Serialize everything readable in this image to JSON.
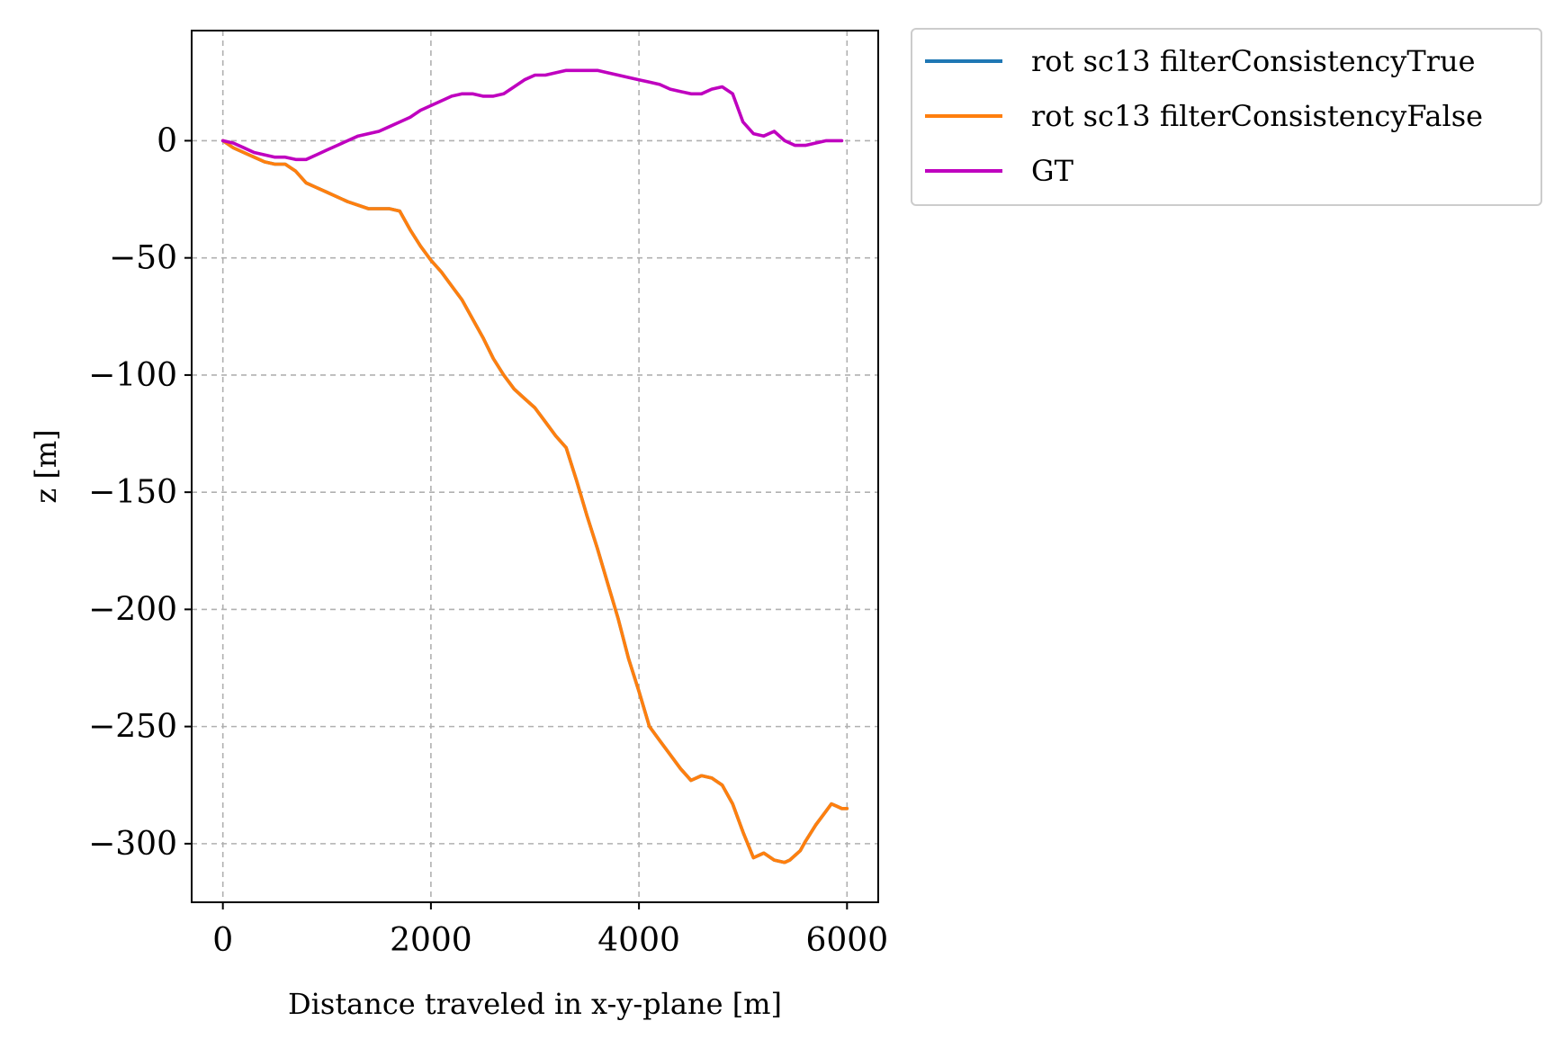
{
  "chart_data": {
    "type": "line",
    "title": "",
    "xlabel": "Distance traveled in x-y-plane [m]",
    "ylabel": "z [m]",
    "xlim": [
      -300,
      6300
    ],
    "ylim": [
      -325,
      47
    ],
    "xticks": [
      0,
      2000,
      4000,
      6000
    ],
    "xtick_labels": [
      "0",
      "2000",
      "4000",
      "6000"
    ],
    "yticks": [
      0,
      -50,
      -100,
      -150,
      -200,
      -250,
      -300
    ],
    "ytick_labels": [
      "0",
      "−50",
      "−100",
      "−150",
      "−200",
      "−250",
      "−300"
    ],
    "grid": true,
    "legend_position": "outside-upper-right",
    "series": [
      {
        "name": "rot sc13 filterConsistencyTrue",
        "color": "#1f77b4",
        "x": [
          0,
          100,
          200,
          300,
          400,
          500,
          600,
          700,
          800,
          900,
          1000,
          1200,
          1400,
          1500,
          1600,
          1700,
          1800,
          1900,
          2000,
          2100,
          2200,
          2300,
          2400,
          2500,
          2600,
          2700,
          2800,
          2900,
          3000,
          3100,
          3200,
          3300,
          3400,
          3500,
          3600,
          3700,
          3800,
          3900,
          4000,
          4100,
          4200,
          4300,
          4400,
          4500,
          4600,
          4700,
          4800,
          4900,
          5000,
          5100,
          5200,
          5300,
          5400,
          5450,
          5550,
          5600,
          5700,
          5800,
          5850,
          5900,
          5950,
          6000
        ],
        "y": [
          0,
          -3,
          -5,
          -7,
          -9,
          -10,
          -10,
          -13,
          -18,
          -20,
          -22,
          -26,
          -29,
          -29,
          -29,
          -30,
          -38,
          -45,
          -51,
          -56,
          -62,
          -68,
          -76,
          -84,
          -93,
          -100,
          -106,
          -110,
          -114,
          -120,
          -126,
          -131,
          -145,
          -160,
          -174,
          -189,
          -204,
          -221,
          -235,
          -250,
          -256,
          -262,
          -268,
          -273,
          -271,
          -272,
          -275,
          -283,
          -295,
          -306,
          -304,
          -307,
          -308,
          -307,
          -303,
          -299,
          -292,
          -286,
          -283,
          -284,
          -285,
          -285
        ]
      },
      {
        "name": "rot sc13 filterConsistencyFalse",
        "color": "#ff7f0e",
        "x": [
          0,
          100,
          200,
          300,
          400,
          500,
          600,
          700,
          800,
          900,
          1000,
          1200,
          1400,
          1500,
          1600,
          1700,
          1800,
          1900,
          2000,
          2100,
          2200,
          2300,
          2400,
          2500,
          2600,
          2700,
          2800,
          2900,
          3000,
          3100,
          3200,
          3300,
          3400,
          3500,
          3600,
          3700,
          3800,
          3900,
          4000,
          4100,
          4200,
          4300,
          4400,
          4500,
          4600,
          4700,
          4800,
          4900,
          5000,
          5100,
          5200,
          5300,
          5400,
          5450,
          5550,
          5600,
          5700,
          5800,
          5850,
          5900,
          5950,
          6000
        ],
        "y": [
          0,
          -3,
          -5,
          -7,
          -9,
          -10,
          -10,
          -13,
          -18,
          -20,
          -22,
          -26,
          -29,
          -29,
          -29,
          -30,
          -38,
          -45,
          -51,
          -56,
          -62,
          -68,
          -76,
          -84,
          -93,
          -100,
          -106,
          -110,
          -114,
          -120,
          -126,
          -131,
          -145,
          -160,
          -174,
          -189,
          -204,
          -221,
          -235,
          -250,
          -256,
          -262,
          -268,
          -273,
          -271,
          -272,
          -275,
          -283,
          -295,
          -306,
          -304,
          -307,
          -308,
          -307,
          -303,
          -299,
          -292,
          -286,
          -283,
          -284,
          -285,
          -285
        ]
      },
      {
        "name": "GT",
        "color": "#bf00bf",
        "x": [
          0,
          100,
          200,
          300,
          400,
          500,
          600,
          700,
          800,
          900,
          1000,
          1100,
          1200,
          1300,
          1400,
          1500,
          1600,
          1700,
          1800,
          1900,
          2000,
          2100,
          2200,
          2300,
          2400,
          2500,
          2600,
          2700,
          2800,
          2900,
          3000,
          3100,
          3200,
          3300,
          3400,
          3500,
          3600,
          3700,
          3800,
          3900,
          4000,
          4100,
          4200,
          4300,
          4400,
          4500,
          4600,
          4700,
          4800,
          4900,
          5000,
          5100,
          5200,
          5300,
          5400,
          5500,
          5600,
          5700,
          5800,
          5900,
          5950
        ],
        "y": [
          0,
          -1,
          -3,
          -5,
          -6,
          -7,
          -7,
          -8,
          -8,
          -6,
          -4,
          -2,
          0,
          2,
          3,
          4,
          6,
          8,
          10,
          13,
          15,
          17,
          19,
          20,
          20,
          19,
          19,
          20,
          23,
          26,
          28,
          28,
          29,
          30,
          30,
          30,
          30,
          29,
          28,
          27,
          26,
          25,
          24,
          22,
          21,
          20,
          20,
          22,
          23,
          20,
          8,
          3,
          2,
          4,
          0,
          -2,
          -2,
          -1,
          0,
          0,
          0
        ]
      }
    ]
  }
}
